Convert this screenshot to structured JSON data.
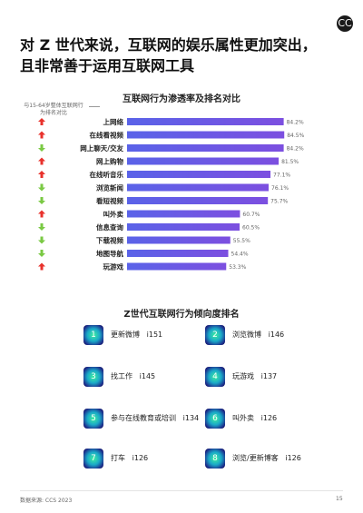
{
  "page": {
    "title_line1": "对 Z 世代来说，互联网的娱乐属性更加突出，",
    "title_line2": "且非常善于运用互联网工具",
    "logo_text": "CC",
    "footer": "数据来源: CCS 2023",
    "page_number": "15"
  },
  "chart_data": {
    "type": "bar",
    "title": "互联网行为渗透率及排名对比",
    "legend_note": "与15-64岁整体互联网行为排名对比",
    "categories": [
      "上网络",
      "在线看视频",
      "网上聊天/交友",
      "网上购物",
      "在线听音乐",
      "浏览新闻",
      "看短视频",
      "叫外卖",
      "信息查询",
      "下载视频",
      "地图导航",
      "玩游戏"
    ],
    "labels": [
      "84.2%",
      "84.5%",
      "84.2%",
      "81.5%",
      "77.1%",
      "76.1%",
      "75.7%",
      "60.7%",
      "60.5%",
      "55.5%",
      "54.4%",
      "53.3%"
    ],
    "values": [
      84.2,
      84.5,
      84.2,
      81.5,
      77.1,
      76.1,
      75.7,
      60.7,
      60.5,
      55.5,
      54.4,
      53.3
    ],
    "rank_change": [
      "up",
      "up",
      "down",
      "up",
      "up",
      "down",
      "down",
      "up",
      "down",
      "down",
      "down",
      "up"
    ],
    "colors": {
      "bar_start": "#5a63e8",
      "bar_end": "#7c4fe0",
      "up": "#e8322c",
      "down": "#7ac943"
    },
    "xlim": [
      0,
      100
    ]
  },
  "ranking": {
    "title": "Z世代互联网行为倾向度排名",
    "items": [
      {
        "num": "1",
        "label": "更新微博",
        "score": "i151"
      },
      {
        "num": "2",
        "label": "浏览微博",
        "score": "i146"
      },
      {
        "num": "3",
        "label": "找工作",
        "score": "i145"
      },
      {
        "num": "4",
        "label": "玩游戏",
        "score": "i137"
      },
      {
        "num": "5",
        "label": "参与在线教育或培训",
        "score": "i134"
      },
      {
        "num": "6",
        "label": "叫外卖",
        "score": "i126"
      },
      {
        "num": "7",
        "label": "打车",
        "score": "i126"
      },
      {
        "num": "8",
        "label": "浏览/更新博客",
        "score": "i126"
      }
    ]
  }
}
